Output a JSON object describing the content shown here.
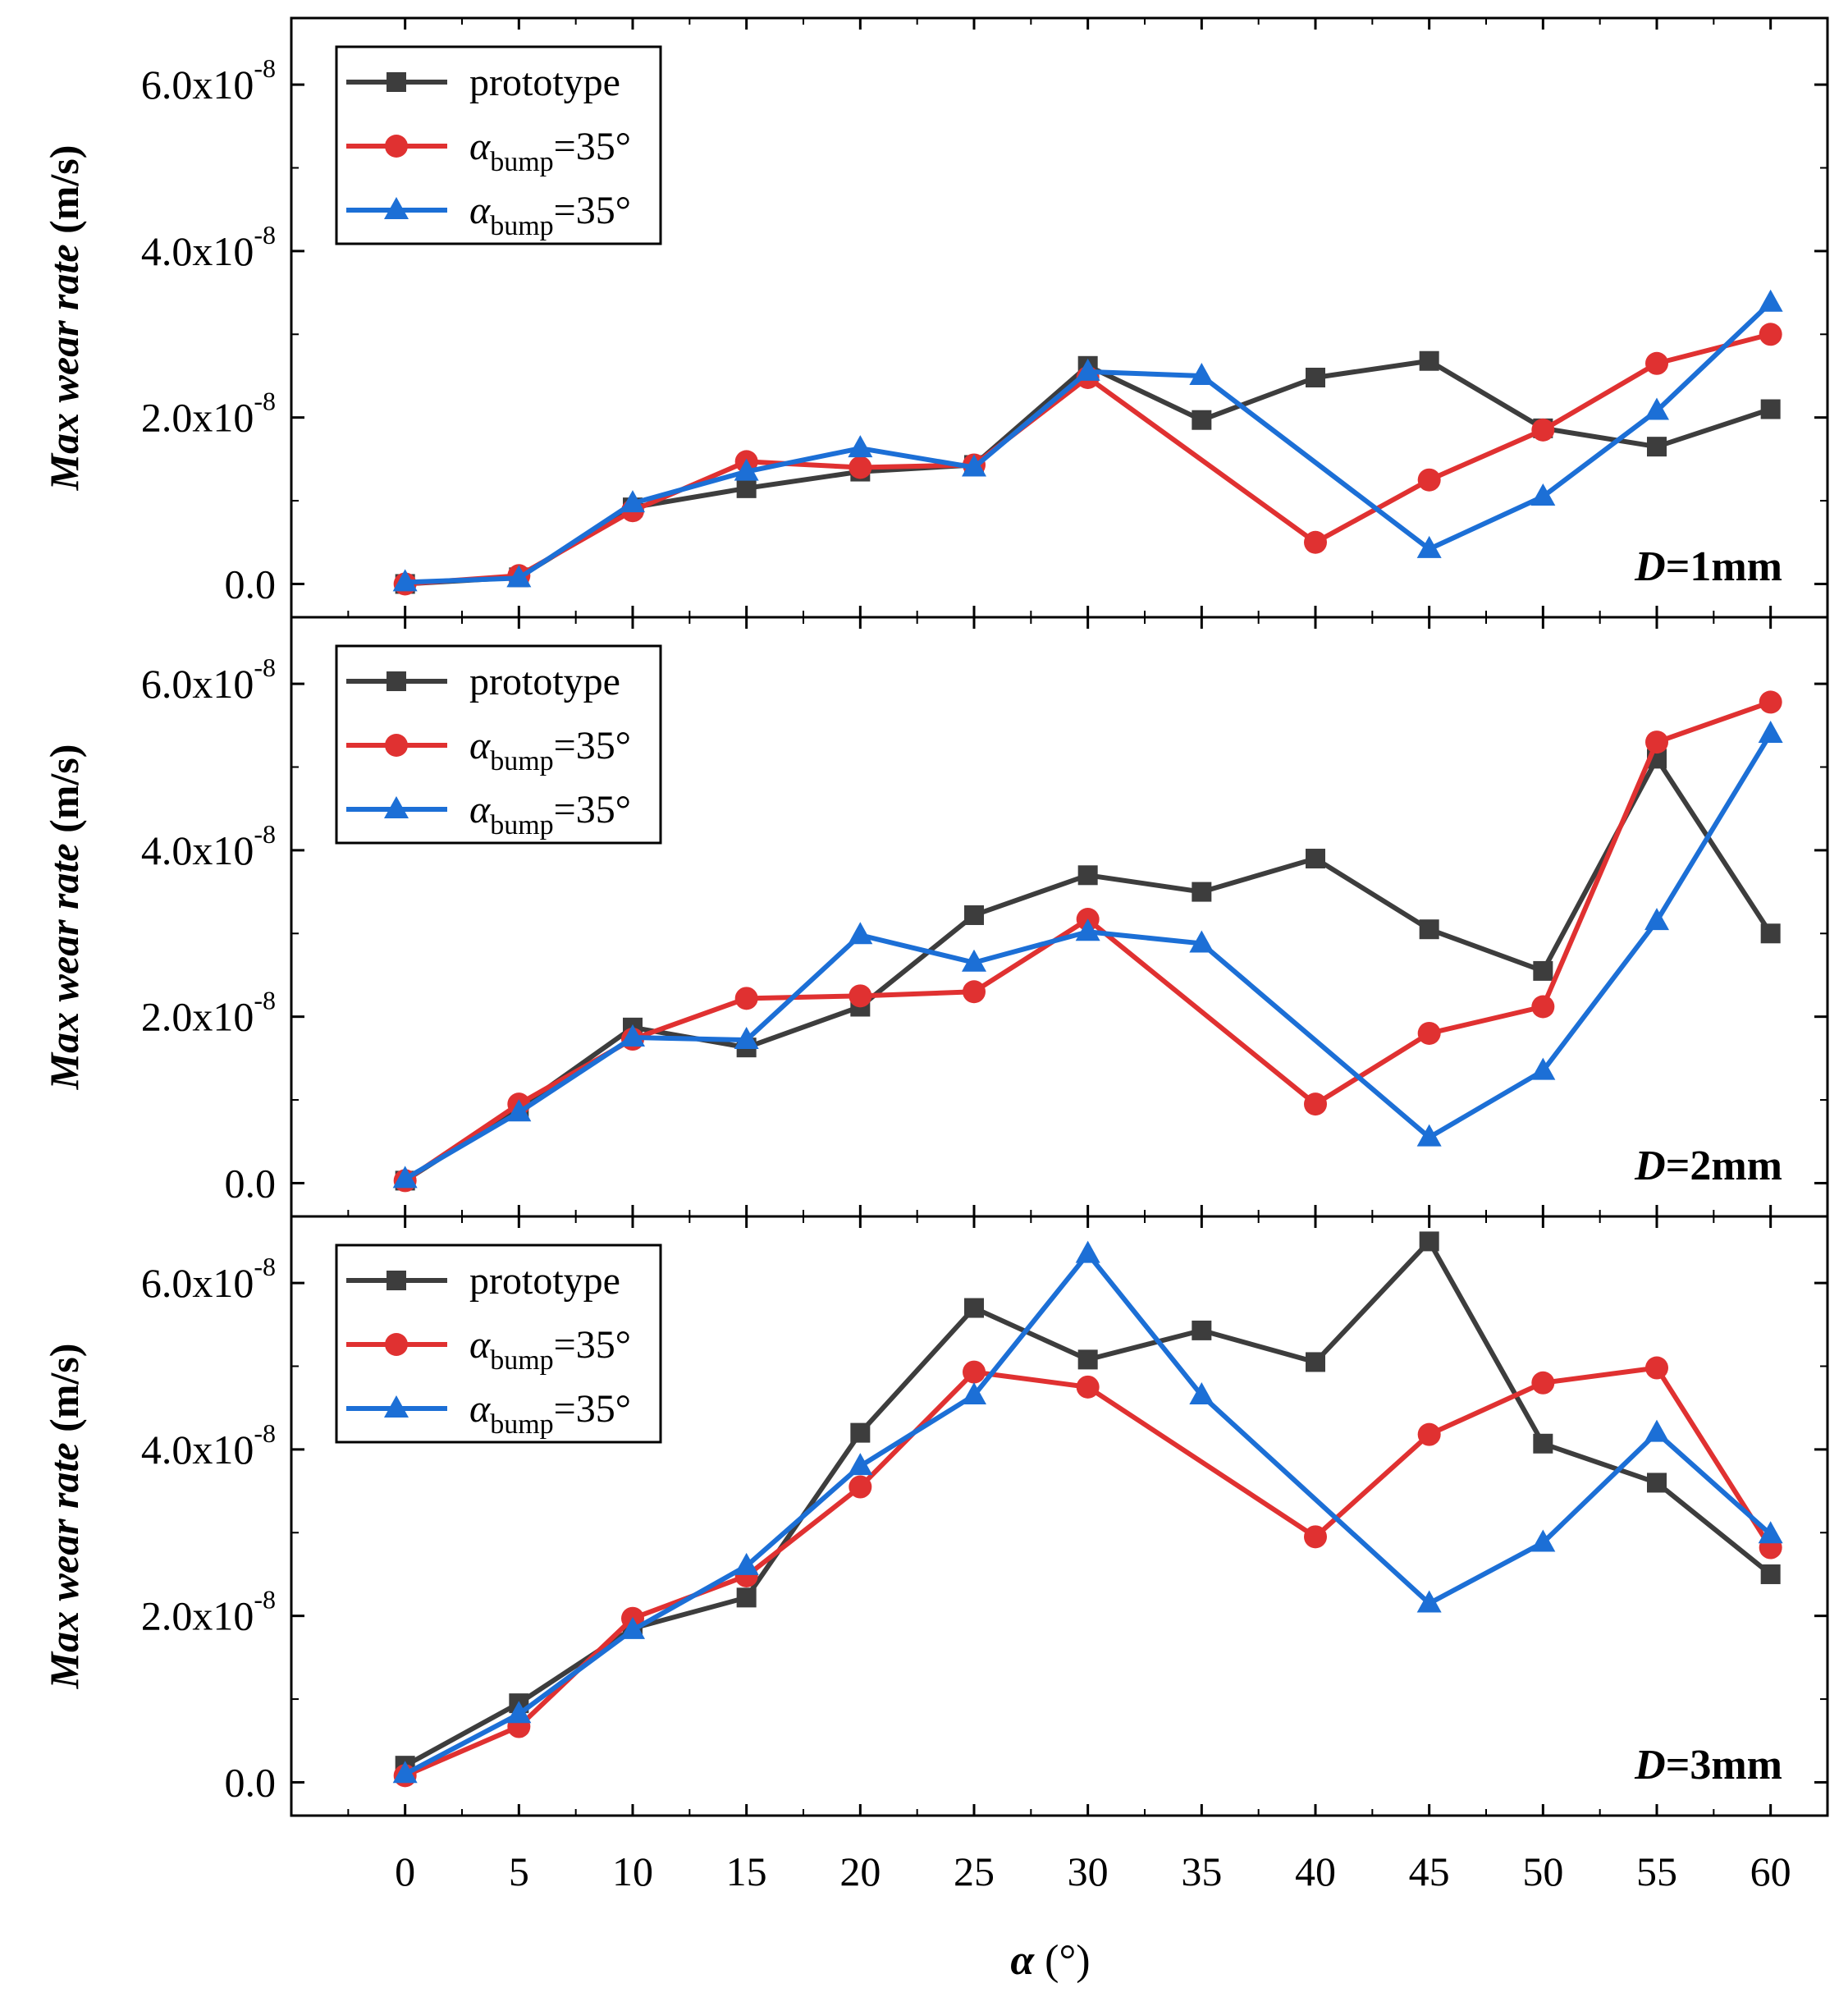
{
  "chart_data": {
    "type": "line",
    "xlabel": "α (°)",
    "x_ticks": [
      0,
      5,
      10,
      15,
      20,
      25,
      30,
      35,
      40,
      45,
      50,
      55,
      60
    ],
    "xlim": [
      -5,
      62.5
    ],
    "x": [
      0,
      5,
      10,
      15,
      20,
      25,
      30,
      35,
      40,
      45,
      50,
      55,
      60
    ],
    "legend_position": "top-left",
    "y_axis": {
      "label": "Max wear rate (m/s)",
      "ylim": [
        -4e-09,
        6.8e-08
      ],
      "ticks": [
        {
          "value": 0,
          "mantissa": "0.0",
          "exponent": ""
        },
        {
          "value": 2e-08,
          "mantissa": "2.0x10",
          "exponent": "-8"
        },
        {
          "value": 4e-08,
          "mantissa": "4.0x10",
          "exponent": "-8"
        },
        {
          "value": 6e-08,
          "mantissa": "6.0x10",
          "exponent": "-8"
        }
      ]
    },
    "series_styles": [
      {
        "color": "#3d3d3d",
        "marker": "square"
      },
      {
        "color": "#e03131",
        "marker": "circle"
      },
      {
        "color": "#1c6fd6",
        "marker": "triangle"
      }
    ],
    "panels": [
      {
        "label_var": "D",
        "label_rest": "=1mm",
        "series": [
          {
            "name": "prototype",
            "values": [
              0.0,
              8e-10,
              9.2e-09,
              1.15e-08,
              1.35e-08,
              1.43e-08,
              2.62e-08,
              1.97e-08,
              2.48e-08,
              2.68e-08,
              1.87e-08,
              1.65e-08,
              2.1e-08
            ]
          },
          {
            "name_var": "α",
            "name_sub": "bump",
            "name_rest": "=35°",
            "values": [
              0.0,
              1e-09,
              8.8e-09,
              1.47e-08,
              1.4e-08,
              1.43e-08,
              2.48e-08,
              null,
              5e-09,
              1.25e-08,
              1.85e-08,
              2.65e-08,
              3e-08
            ]
          },
          {
            "name_var": "α",
            "name_sub": "bump",
            "name_rest": "=35°",
            "values": [
              2e-10,
              7e-10,
              9.7e-09,
              1.35e-08,
              1.63e-08,
              1.4e-08,
              2.55e-08,
              2.5e-08,
              null,
              4.2e-09,
              1.05e-08,
              2.08e-08,
              3.38e-08
            ]
          }
        ]
      },
      {
        "label_var": "D",
        "label_rest": "=2mm",
        "series": [
          {
            "name": "prototype",
            "values": [
              3e-10,
              9e-09,
              1.87e-08,
              1.63e-08,
              2.12e-08,
              3.22e-08,
              3.7e-08,
              3.5e-08,
              3.9e-08,
              3.05e-08,
              2.55e-08,
              5.1e-08,
              3e-08
            ]
          },
          {
            "name_var": "α",
            "name_sub": "bump",
            "name_rest": "=35°",
            "values": [
              3e-10,
              9.5e-09,
              1.73e-08,
              2.22e-08,
              2.25e-08,
              2.3e-08,
              3.17e-08,
              null,
              9.5e-09,
              1.8e-08,
              2.12e-08,
              5.3e-08,
              5.78e-08
            ]
          },
          {
            "name_var": "α",
            "name_sub": "bump",
            "name_rest": "=35°",
            "values": [
              5e-10,
              8.5e-09,
              1.75e-08,
              1.72e-08,
              2.98e-08,
              2.65e-08,
              3.02e-08,
              2.88e-08,
              null,
              5.5e-09,
              1.35e-08,
              3.15e-08,
              5.4e-08
            ]
          }
        ]
      },
      {
        "label_var": "D",
        "label_rest": "=3mm",
        "series": [
          {
            "name": "prototype",
            "values": [
              2e-09,
              9.5e-09,
              1.85e-08,
              2.22e-08,
              4.2e-08,
              5.7e-08,
              5.08e-08,
              5.43e-08,
              5.05e-08,
              6.5e-08,
              4.07e-08,
              3.6e-08,
              2.5e-08
            ]
          },
          {
            "name_var": "α",
            "name_sub": "bump",
            "name_rest": "=35°",
            "values": [
              8e-10,
              6.7e-09,
              1.97e-08,
              2.48e-08,
              3.55e-08,
              4.93e-08,
              4.75e-08,
              null,
              2.95e-08,
              4.18e-08,
              4.8e-08,
              4.98e-08,
              2.82e-08
            ]
          },
          {
            "name_var": "α",
            "name_sub": "bump",
            "name_rest": "=35°",
            "values": [
              1e-09,
              8.2e-09,
              1.83e-08,
              2.6e-08,
              3.8e-08,
              4.65e-08,
              6.35e-08,
              4.65e-08,
              null,
              2.15e-08,
              2.88e-08,
              4.2e-08,
              2.98e-08
            ]
          }
        ]
      }
    ]
  }
}
